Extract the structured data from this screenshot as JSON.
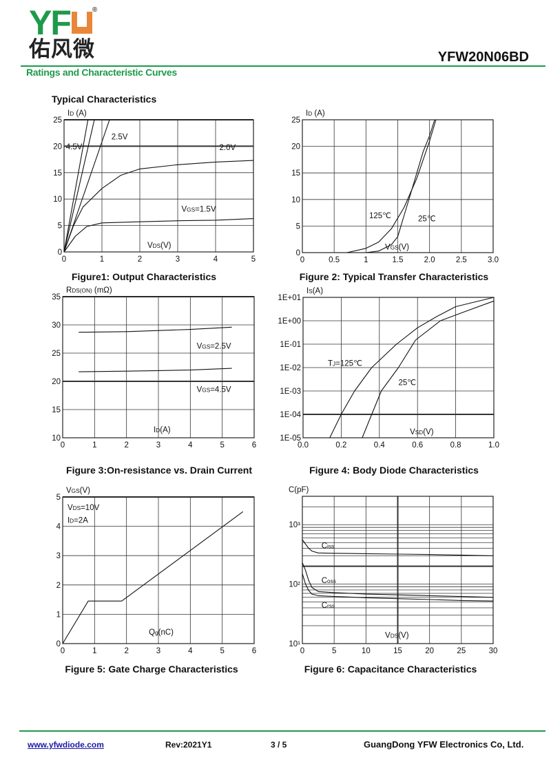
{
  "header": {
    "logo_text": "YFW",
    "logo_cn": "佑风微",
    "registered": "®",
    "part_number": "YFW20N06BD",
    "section_title": "Ratings and Characteristic Curves",
    "subtitle": "Typical Characteristics"
  },
  "colors": {
    "brand_green": "#1e9a4a",
    "brand_orange": "#e8873a",
    "link": "#1a1aa8"
  },
  "footer": {
    "website": "www.yfwdiode.com",
    "revision": "Rev:2021Y1",
    "page": "3 / 5",
    "company": "GuangDong YFW Electronics Co, Ltd."
  },
  "chart_data": [
    {
      "type": "line",
      "title": "Figure1: Output Characteristics",
      "ylabel": [
        "I",
        "D",
        " (A)"
      ],
      "xlabel": [
        "V",
        "DS",
        "(V)"
      ],
      "xlim": [
        0,
        5
      ],
      "ylim": [
        0,
        25
      ],
      "xticks": [
        0,
        1,
        2,
        3,
        4,
        5
      ],
      "yticks": [
        0,
        5,
        10,
        15,
        20,
        25
      ],
      "xticklabels": [
        "0",
        "1",
        "2",
        "3",
        "4",
        "5"
      ],
      "yticklabels": [
        "0",
        "5",
        "10",
        "15",
        "20",
        "25"
      ],
      "grid": true,
      "series": [
        {
          "name": "4.5V",
          "x": [
            0,
            0.63
          ],
          "y": [
            0,
            25
          ]
        },
        {
          "x": [
            0,
            0.8
          ],
          "y": [
            0,
            25
          ]
        },
        {
          "name": "2.5V",
          "x": [
            0,
            1.2
          ],
          "y": [
            0,
            25
          ]
        },
        {
          "name": "2.0V",
          "x": [
            0,
            0.25,
            0.5,
            1,
            1.5,
            2,
            3,
            4,
            5
          ],
          "y": [
            0,
            5,
            8.5,
            12,
            14.5,
            15.7,
            16.5,
            17,
            17.3
          ]
        },
        {
          "name": "VGS=1.5V",
          "x": [
            0,
            0.3,
            0.6,
            1,
            2,
            3,
            4,
            5
          ],
          "y": [
            0,
            3,
            4.8,
            5.5,
            5.7,
            5.9,
            6,
            6.3
          ]
        }
      ],
      "annotations": [
        [
          "4.5V"
        ],
        [
          "2.5V"
        ],
        [
          "2.0V"
        ],
        [
          "V",
          "GS",
          "=1.5V"
        ]
      ]
    },
    {
      "type": "line",
      "title": "Figure 2: Typical Transfer Characteristics",
      "ylabel": [
        "I",
        "D",
        " (A)"
      ],
      "xlabel": [
        "V",
        "GS",
        "(V)"
      ],
      "xlim": [
        0,
        3
      ],
      "ylim": [
        0,
        25
      ],
      "xticks": [
        0,
        0.5,
        1,
        1.5,
        2,
        2.5,
        3
      ],
      "yticks": [
        0,
        5,
        10,
        15,
        20,
        25
      ],
      "xticklabels": [
        "0",
        "0.5",
        "1",
        "1.5",
        "2.0",
        "2.5",
        "3.0"
      ],
      "yticklabels": [
        "0",
        "5",
        "10",
        "15",
        "20",
        "25"
      ],
      "grid": true,
      "series": [
        {
          "name": "125℃",
          "x": [
            0.7,
            1,
            1.2,
            1.4,
            1.6,
            1.8,
            2.0,
            2.1
          ],
          "y": [
            0,
            0.8,
            2,
            4.5,
            8.5,
            14,
            21,
            25
          ]
        },
        {
          "name": "25℃",
          "x": [
            1,
            1.2,
            1.4,
            1.5,
            1.6,
            1.7,
            1.8,
            1.9,
            2.0,
            2.08
          ],
          "y": [
            0,
            0.3,
            1.5,
            3,
            7,
            11,
            15,
            19,
            22,
            25
          ]
        }
      ],
      "annotations": [
        [
          "125℃"
        ],
        [
          "25℃"
        ]
      ]
    },
    {
      "type": "line",
      "title": "Figure 3:On-resistance vs. Drain Current",
      "ylabel": [
        "R",
        "DS(ON)",
        " (mΩ)"
      ],
      "xlabel": [
        "I",
        "D",
        "(A)"
      ],
      "xlim": [
        0,
        6
      ],
      "ylim": [
        10,
        35
      ],
      "xticks": [
        0,
        1,
        2,
        3,
        4,
        5,
        6
      ],
      "yticks": [
        10,
        15,
        20,
        25,
        30,
        35
      ],
      "xticklabels": [
        "0",
        "1",
        "2",
        "3",
        "4",
        "5",
        "6"
      ],
      "yticklabels": [
        "10",
        "15",
        "20",
        "25",
        "30",
        "35"
      ],
      "grid": true,
      "series": [
        {
          "name": "VGS=2.5V",
          "x": [
            0.5,
            2,
            3,
            4,
            5.3
          ],
          "y": [
            28.7,
            28.8,
            29,
            29.2,
            29.6
          ]
        },
        {
          "name": "VGS=4.5V",
          "x": [
            0.5,
            2,
            3,
            4,
            5.3
          ],
          "y": [
            21.7,
            21.8,
            21.9,
            22,
            22.3
          ]
        }
      ],
      "annotations": [
        [
          "V",
          "GS",
          "=2.5V"
        ],
        [
          "V",
          "GS",
          "=4.5V"
        ]
      ]
    },
    {
      "type": "line",
      "title": "Figure 4: Body Diode Characteristics",
      "ylabel": [
        "I",
        "S",
        "(A)"
      ],
      "xlabel": [
        "V",
        "SD",
        "(V)"
      ],
      "xlim": [
        0,
        1
      ],
      "ylim": [
        1e-05,
        10
      ],
      "yscale": "log",
      "xticks": [
        0,
        0.2,
        0.4,
        0.6,
        0.8,
        1.0
      ],
      "yticks": [
        1e-05,
        0.0001,
        0.001,
        0.01,
        0.1,
        1,
        10
      ],
      "xticklabels": [
        "0.0",
        "0.2",
        "0.4",
        "0.6",
        "0.8",
        "1.0"
      ],
      "yticklabels": [
        "1E-05",
        "1E-04",
        "1E-03",
        "1E-02",
        "1E-01",
        "1E+00",
        "1E+01"
      ],
      "grid": true,
      "series": [
        {
          "name": "TJ=125℃",
          "x": [
            0.14,
            0.2,
            0.27,
            0.36,
            0.49,
            0.6,
            0.7,
            0.8,
            1.0
          ],
          "y": [
            1e-05,
            0.0001,
            0.001,
            0.01,
            0.1,
            0.5,
            1.5,
            4,
            10
          ]
        },
        {
          "name": "25℃",
          "x": [
            0.31,
            0.36,
            0.41,
            0.5,
            0.59,
            0.72,
            0.85,
            1.0
          ],
          "y": [
            1e-05,
            0.0001,
            0.001,
            0.01,
            0.15,
            1,
            2.5,
            7
          ]
        }
      ],
      "annotations": [
        [
          "T",
          "J",
          "=125℃"
        ],
        [
          "25℃"
        ]
      ]
    },
    {
      "type": "line",
      "title": "Figure 5: Gate Charge Characteristics",
      "ylabel": [
        "V",
        "GS",
        "(V)"
      ],
      "xlabel": [
        "Q",
        "g",
        "(nC)"
      ],
      "xlim": [
        0,
        6
      ],
      "ylim": [
        0,
        5
      ],
      "xticks": [
        0,
        1,
        2,
        3,
        4,
        5,
        6
      ],
      "yticks": [
        0,
        1,
        2,
        3,
        4,
        5
      ],
      "xticklabels": [
        "0",
        "1",
        "2",
        "3",
        "4",
        "5",
        "6"
      ],
      "yticklabels": [
        "0",
        "1",
        "2",
        "3",
        "4",
        "5"
      ],
      "grid": true,
      "series": [
        {
          "x": [
            0,
            0.8,
            1.85,
            5.65
          ],
          "y": [
            0,
            1.45,
            1.45,
            4.5
          ]
        }
      ],
      "annotations": [
        [
          "V",
          "DS",
          "=10V"
        ],
        [
          "I",
          "D",
          "=2A"
        ]
      ]
    },
    {
      "type": "line",
      "title": "Figure 6: Capacitance Characteristics",
      "ylabel": [
        "C(pF)"
      ],
      "xlabel": [
        "V",
        "DS",
        "(V)"
      ],
      "xlim": [
        0,
        30
      ],
      "ylim": [
        10,
        3000
      ],
      "yscale": "log",
      "xticks": [
        0,
        5,
        10,
        15,
        20,
        25,
        30
      ],
      "yticks": [
        10,
        100,
        1000
      ],
      "xticklabels": [
        "0",
        "5",
        "10",
        "15",
        "20",
        "25",
        "30"
      ],
      "yticklabels": [
        "10¹",
        "10²",
        "10³"
      ],
      "grid": true,
      "series": [
        {
          "name": "Ciss",
          "x": [
            0,
            0.5,
            1,
            1.5,
            2.5,
            5,
            10,
            15,
            20,
            25,
            30
          ],
          "y": [
            560,
            470,
            400,
            360,
            335,
            330,
            325,
            320,
            315,
            308,
            300
          ]
        },
        {
          "name": "Coss",
          "x": [
            0,
            0.5,
            1,
            1.5,
            2.5,
            5,
            10,
            15,
            20,
            25,
            30
          ],
          "y": [
            230,
            170,
            115,
            88,
            75,
            72,
            68,
            66,
            64,
            62,
            60
          ]
        },
        {
          "name": "Crss",
          "x": [
            0,
            0.5,
            1,
            1.5,
            2.5,
            5,
            10,
            15,
            20,
            25,
            30
          ],
          "y": [
            150,
            100,
            78,
            68,
            64,
            62,
            59,
            57,
            55,
            53,
            52
          ]
        }
      ],
      "annotations": [
        [
          "C",
          "iss",
          ""
        ],
        [
          "C",
          "oss",
          ""
        ],
        [
          "C",
          "rss",
          ""
        ]
      ]
    }
  ]
}
